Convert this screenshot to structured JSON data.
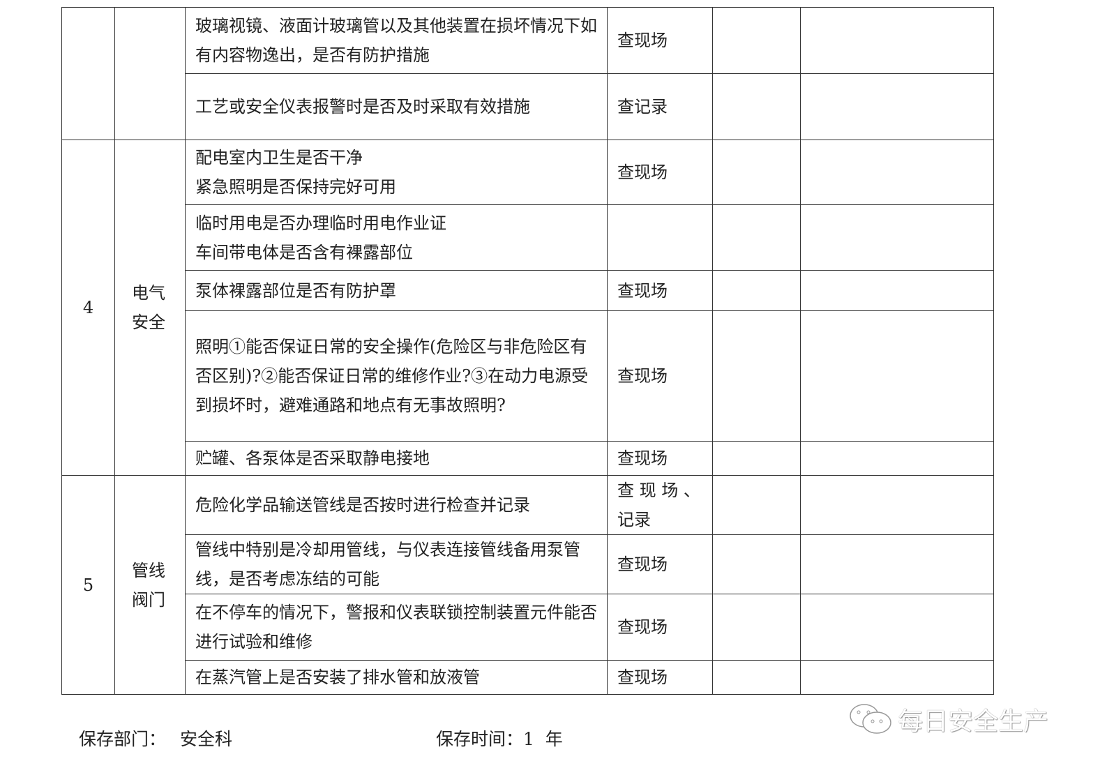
{
  "table": {
    "rows": [
      {
        "item": "玻璃视镜、液面计玻璃管以及其他装置在损坏情况下如有内容物逸出，是否有防护措施",
        "method": "查现场"
      },
      {
        "item": "工艺或安全仪表报警时是否及时采取有效措施",
        "method": "查记录"
      },
      {
        "item": "配电室内卫生是否干净\n紧急照明是否保持完好可用",
        "method": "查现场"
      },
      {
        "item": "临时用电是否办理临时用电作业证\n车间带电体是否含有裸露部位",
        "method": ""
      },
      {
        "item": "泵体裸露部位是否有防护罩",
        "method": "查现场"
      },
      {
        "item": "照明①能否保证日常的安全操作(危险区与非危险区有否区别)?②能否保证日常的维修作业?③在动力电源受到损坏时，避难通路和地点有无事故照明?",
        "method": "查现场"
      },
      {
        "item": "贮罐、各泵体是否采取静电接地",
        "method": "查现场"
      },
      {
        "item": "危险化学品输送管线是否按时进行检查并记录",
        "method": "查 现 场 、记录"
      },
      {
        "item": "管线中特别是冷却用管线，与仪表连接管线备用泵管线，是否考虑冻结的可能",
        "method": "查现场"
      },
      {
        "item": "在不停车的情况下，警报和仪表联锁控制装置元件能否进行试验和维修",
        "method": "查现场"
      },
      {
        "item": "在蒸汽管上是否安装了排水管和放液管",
        "method": "查现场"
      }
    ],
    "groups": [
      {
        "no": "4",
        "category": "电气\n安全"
      },
      {
        "no": "5",
        "category": "管线\n阀门"
      }
    ]
  },
  "footer": {
    "dept_label": "保存部门：",
    "dept_value": "安全科",
    "time_label": "保存时间：1  年"
  },
  "watermark": {
    "icon": "wechat-icon",
    "text": "每日安全生产"
  }
}
